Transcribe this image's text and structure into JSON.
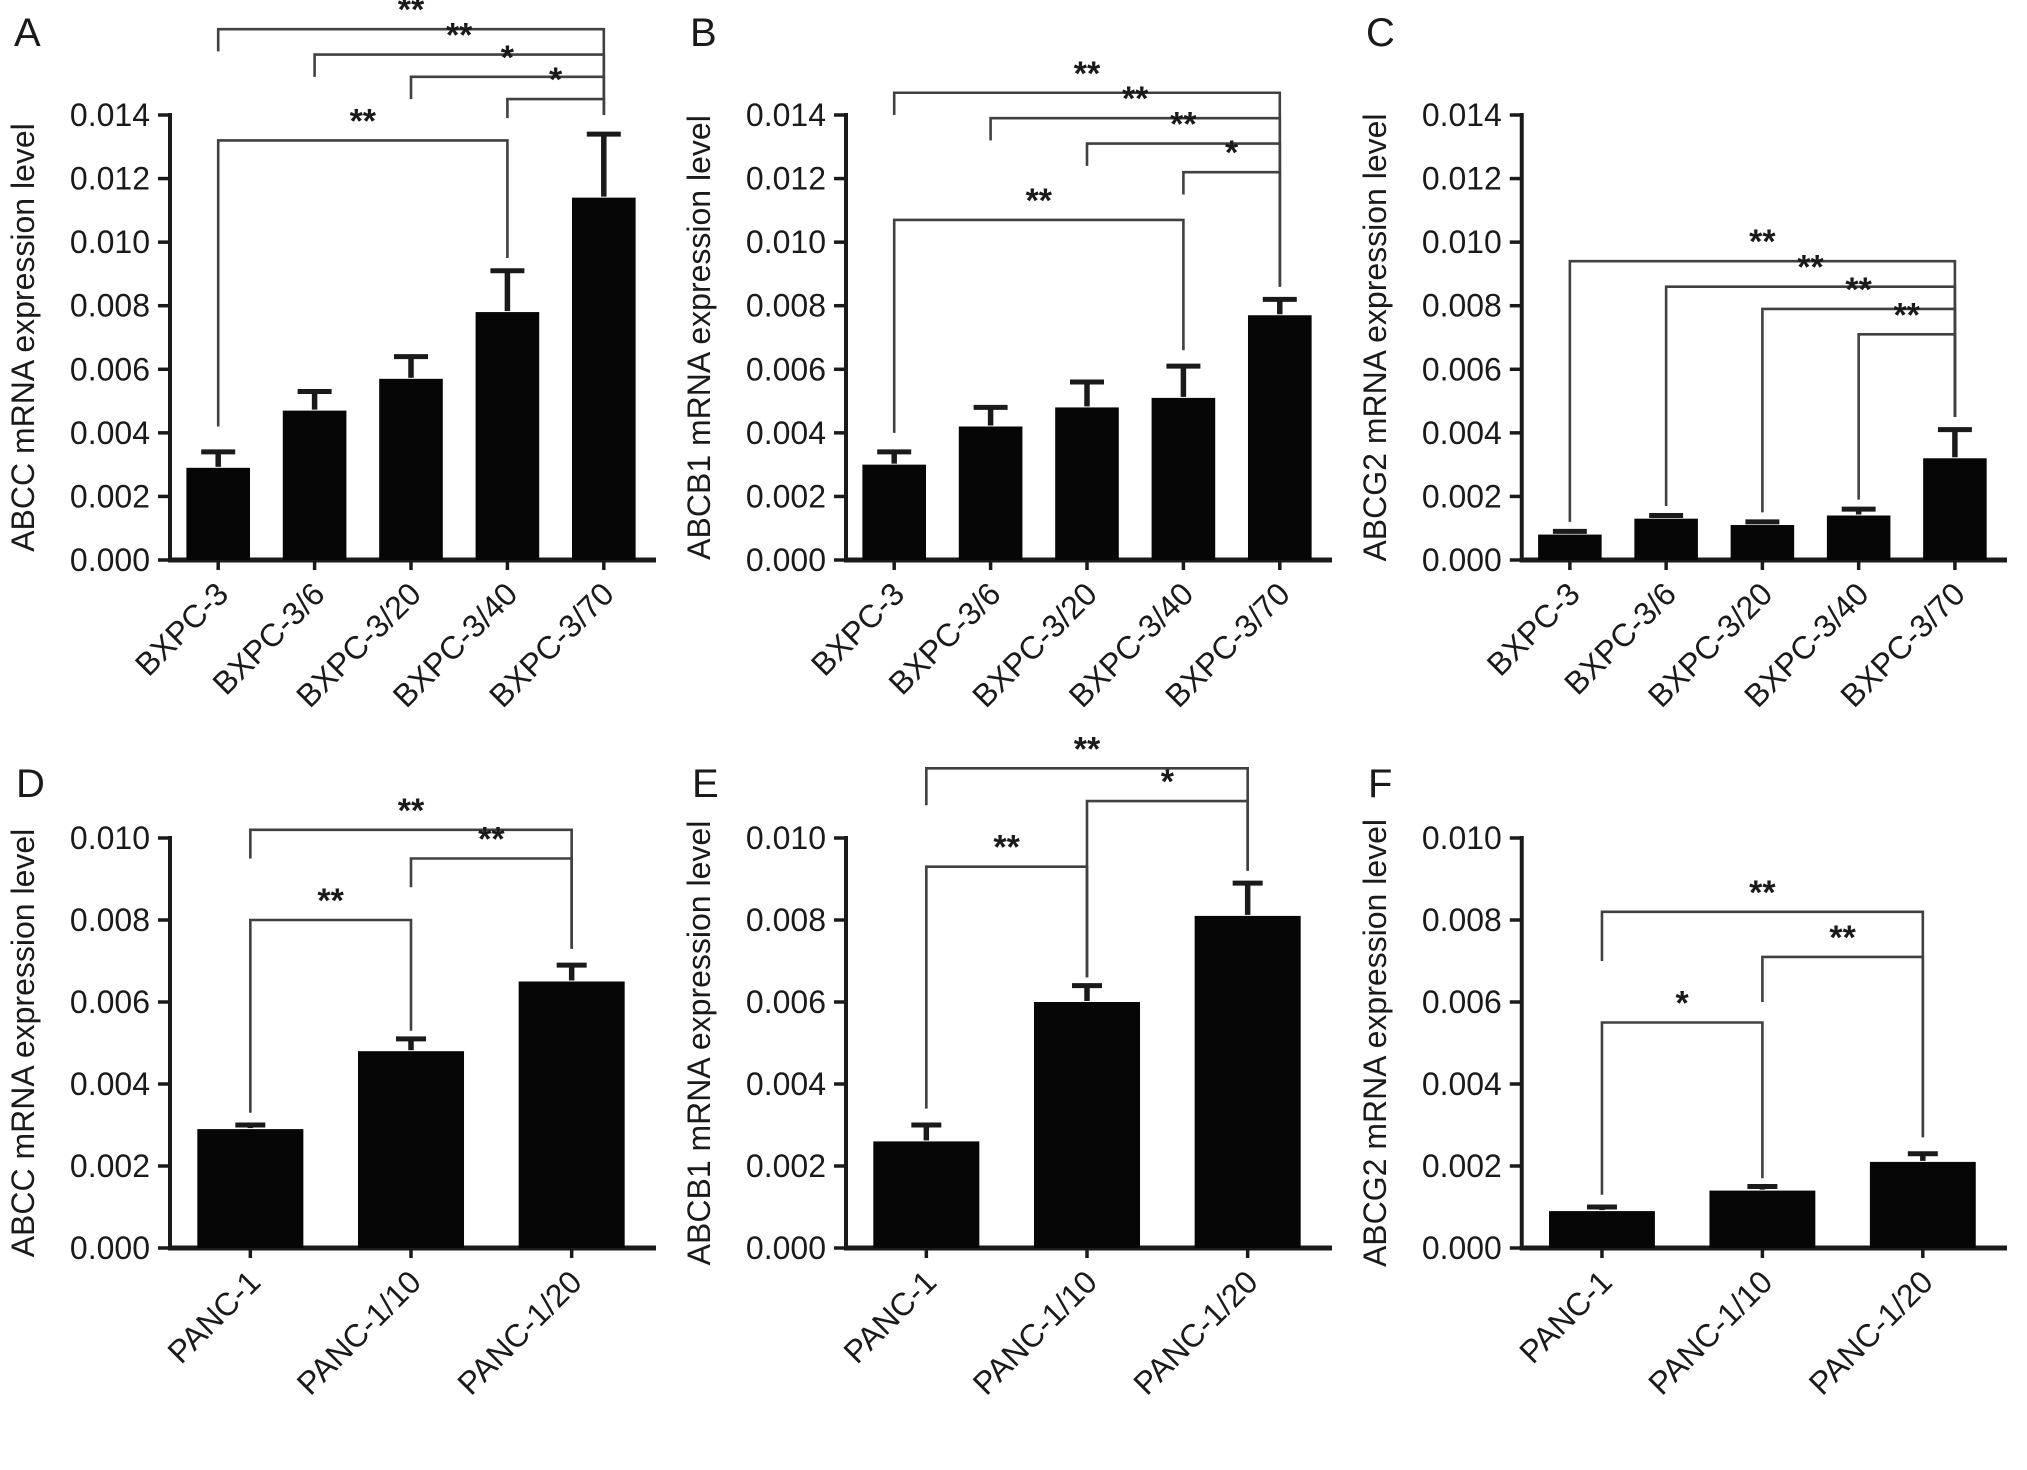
{
  "figure": {
    "background": "#ffffff",
    "bar_color": "#060606",
    "axis_color": "#1a1a1a",
    "bracket_color": "#404040",
    "text_color": "#1a1a1a"
  },
  "chart_data": [
    {
      "type": "bar",
      "panel": "A",
      "title": "",
      "xlabel": "",
      "ylabel": "ABCC mRNA expression level",
      "categories": [
        "BXPC-3",
        "BXPC-3/6",
        "BXPC-3/20",
        "BXPC-3/40",
        "BXPC-3/70"
      ],
      "values": [
        0.0029,
        0.0047,
        0.0057,
        0.0078,
        0.0114
      ],
      "errors": [
        0.0005,
        0.0006,
        0.0007,
        0.0013,
        0.002
      ],
      "ylim": [
        0,
        0.014
      ],
      "ytick_step": 0.002,
      "ytick_labels": [
        "0.000",
        "0.002",
        "0.004",
        "0.006",
        "0.008",
        "0.010",
        "0.012",
        "0.014"
      ],
      "grid": false,
      "error_bars": "upper",
      "legend": "none",
      "significance": [
        {
          "from": "BXPC-3",
          "to": "BXPC-3/70",
          "label": "**",
          "y": 0.0167,
          "drops": [
            0.016,
            0.014
          ]
        },
        {
          "from": "BXPC-3/6",
          "to": "BXPC-3/70",
          "label": "**",
          "y": 0.0159,
          "drops": [
            0.0152,
            0.014
          ]
        },
        {
          "from": "BXPC-3/20",
          "to": "BXPC-3/70",
          "label": "*",
          "y": 0.0152,
          "drops": [
            0.0145,
            0.014
          ]
        },
        {
          "from": "BXPC-3/40",
          "to": "BXPC-3/70",
          "label": "*",
          "y": 0.0145,
          "drops": [
            0.0139,
            0.014
          ]
        },
        {
          "from": "BXPC-3",
          "to": "BXPC-3/40",
          "label": "**",
          "y": 0.0132,
          "drops": [
            0.0042,
            0.0095
          ]
        }
      ]
    },
    {
      "type": "bar",
      "panel": "B",
      "title": "",
      "xlabel": "",
      "ylabel": "ABCB1 mRNA expression level",
      "categories": [
        "BXPC-3",
        "BXPC-3/6",
        "BXPC-3/20",
        "BXPC-3/40",
        "BXPC-3/70"
      ],
      "values": [
        0.003,
        0.0042,
        0.0048,
        0.0051,
        0.0077
      ],
      "errors": [
        0.0004,
        0.0006,
        0.0008,
        0.001,
        0.0005
      ],
      "ylim": [
        0,
        0.014
      ],
      "ytick_step": 0.002,
      "ytick_labels": [
        "0.000",
        "0.002",
        "0.004",
        "0.006",
        "0.008",
        "0.010",
        "0.012",
        "0.014"
      ],
      "grid": false,
      "error_bars": "upper",
      "legend": "none",
      "significance": [
        {
          "from": "BXPC-3",
          "to": "BXPC-3/70",
          "label": "**",
          "y": 0.0147,
          "drops": [
            0.014,
            0.0086
          ]
        },
        {
          "from": "BXPC-3/6",
          "to": "BXPC-3/70",
          "label": "**",
          "y": 0.0139,
          "drops": [
            0.0132,
            0.0086
          ]
        },
        {
          "from": "BXPC-3/20",
          "to": "BXPC-3/70",
          "label": "**",
          "y": 0.0131,
          "drops": [
            0.0124,
            0.0086
          ]
        },
        {
          "from": "BXPC-3/40",
          "to": "BXPC-3/70",
          "label": "*",
          "y": 0.0122,
          "drops": [
            0.0115,
            0.0086
          ]
        },
        {
          "from": "BXPC-3",
          "to": "BXPC-3/40",
          "label": "**",
          "y": 0.0107,
          "drops": [
            0.004,
            0.0066
          ]
        }
      ]
    },
    {
      "type": "bar",
      "panel": "C",
      "title": "",
      "xlabel": "",
      "ylabel": "ABCG2 mRNA expression level",
      "categories": [
        "BXPC-3",
        "BXPC-3/6",
        "BXPC-3/20",
        "BXPC-3/40",
        "BXPC-3/70"
      ],
      "values": [
        0.0008,
        0.0013,
        0.0011,
        0.0014,
        0.0032
      ],
      "errors": [
        0.0001,
        0.0001,
        0.0001,
        0.0002,
        0.0009
      ],
      "ylim": [
        0,
        0.014
      ],
      "ytick_step": 0.002,
      "ytick_labels": [
        "0.000",
        "0.002",
        "0.004",
        "0.006",
        "0.008",
        "0.010",
        "0.012",
        "0.014"
      ],
      "grid": false,
      "error_bars": "upper",
      "legend": "none",
      "significance": [
        {
          "from": "BXPC-3",
          "to": "BXPC-3/70",
          "label": "**",
          "y": 0.0094,
          "drops": [
            0.0012,
            0.0045
          ]
        },
        {
          "from": "BXPC-3/6",
          "to": "BXPC-3/70",
          "label": "**",
          "y": 0.0086,
          "drops": [
            0.0017,
            0.0045
          ]
        },
        {
          "from": "BXPC-3/20",
          "to": "BXPC-3/70",
          "label": "**",
          "y": 0.0079,
          "drops": [
            0.0015,
            0.0045
          ]
        },
        {
          "from": "BXPC-3/40",
          "to": "BXPC-3/70",
          "label": "**",
          "y": 0.0071,
          "drops": [
            0.0019,
            0.0045
          ]
        }
      ]
    },
    {
      "type": "bar",
      "panel": "D",
      "title": "",
      "xlabel": "",
      "ylabel": "ABCC mRNA expression level",
      "categories": [
        "PANC-1",
        "PANC-1/10",
        "PANC-1/20"
      ],
      "values": [
        0.0029,
        0.0048,
        0.0065
      ],
      "errors": [
        0.0001,
        0.0003,
        0.0004
      ],
      "ylim": [
        0,
        0.01
      ],
      "ytick_step": 0.002,
      "ytick_labels": [
        "0.000",
        "0.002",
        "0.004",
        "0.006",
        "0.008",
        "0.010"
      ],
      "grid": false,
      "error_bars": "upper",
      "legend": "none",
      "significance": [
        {
          "from": "PANC-1",
          "to": "PANC-1/20",
          "label": "**",
          "y": 0.0102,
          "drops": [
            0.0095,
            0.0073
          ]
        },
        {
          "from": "PANC-1/10",
          "to": "PANC-1/20",
          "label": "**",
          "y": 0.0095,
          "drops": [
            0.0088,
            0.0073
          ]
        },
        {
          "from": "PANC-1",
          "to": "PANC-1/10",
          "label": "**",
          "y": 0.008,
          "drops": [
            0.0033,
            0.0053
          ]
        }
      ]
    },
    {
      "type": "bar",
      "panel": "E",
      "title": "",
      "xlabel": "",
      "ylabel": "ABCB1 mRNA expression level",
      "categories": [
        "PANC-1",
        "PANC-1/10",
        "PANC-1/20"
      ],
      "values": [
        0.0026,
        0.006,
        0.0081
      ],
      "errors": [
        0.0004,
        0.0004,
        0.0008
      ],
      "ylim": [
        0,
        0.01
      ],
      "ytick_step": 0.002,
      "ytick_labels": [
        "0.000",
        "0.002",
        "0.004",
        "0.006",
        "0.008",
        "0.010"
      ],
      "grid": false,
      "error_bars": "upper",
      "legend": "none",
      "significance": [
        {
          "from": "PANC-1",
          "to": "PANC-1/20",
          "label": "**",
          "y": 0.0117,
          "drops": [
            0.0108,
            0.0092
          ]
        },
        {
          "from": "PANC-1/10",
          "to": "PANC-1/20",
          "label": "*",
          "y": 0.0109,
          "drops": [
            0.0066,
            0.0092
          ]
        },
        {
          "from": "PANC-1",
          "to": "PANC-1/10",
          "label": "**",
          "y": 0.0093,
          "drops": [
            0.0034,
            0.0066
          ]
        }
      ]
    },
    {
      "type": "bar",
      "panel": "F",
      "title": "",
      "xlabel": "",
      "ylabel": "ABCG2 mRNA expression level",
      "categories": [
        "PANC-1",
        "PANC-1/10",
        "PANC-1/20"
      ],
      "values": [
        0.0009,
        0.0014,
        0.0021
      ],
      "errors": [
        0.0001,
        0.0001,
        0.0002
      ],
      "ylim": [
        0,
        0.01
      ],
      "ytick_step": 0.002,
      "ytick_labels": [
        "0.000",
        "0.002",
        "0.004",
        "0.006",
        "0.008",
        "0.010"
      ],
      "grid": false,
      "error_bars": "upper",
      "legend": "none",
      "significance": [
        {
          "from": "PANC-1",
          "to": "PANC-1/20",
          "label": "**",
          "y": 0.0082,
          "drops": [
            0.007,
            0.0027
          ]
        },
        {
          "from": "PANC-1/10",
          "to": "PANC-1/20",
          "label": "**",
          "y": 0.0071,
          "drops": [
            0.006,
            0.0027
          ]
        },
        {
          "from": "PANC-1",
          "to": "PANC-1/10",
          "label": "*",
          "y": 0.0055,
          "drops": [
            0.0013,
            0.0017
          ]
        }
      ]
    }
  ]
}
